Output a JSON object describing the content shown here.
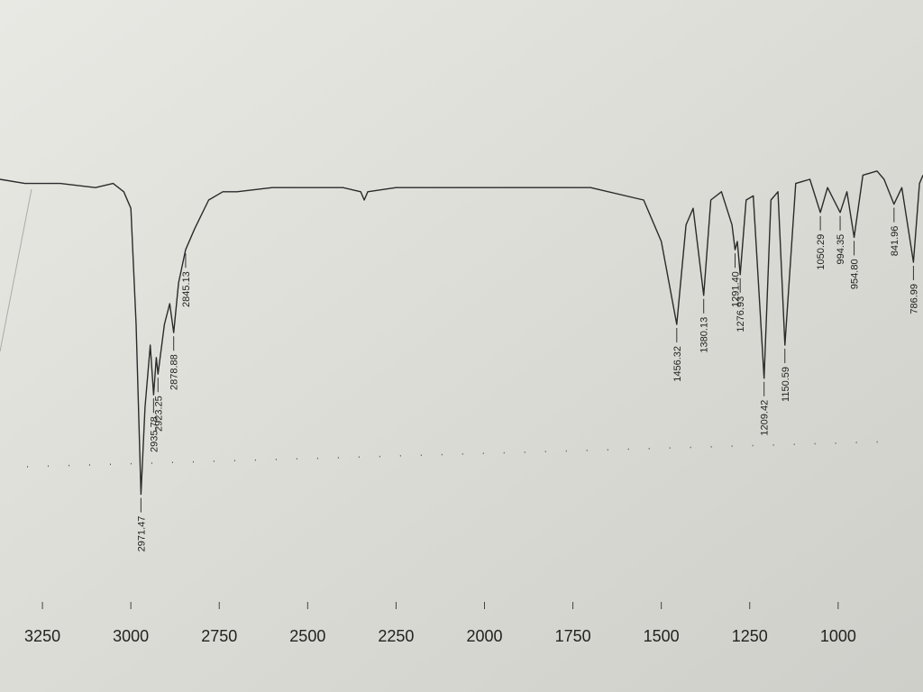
{
  "chart_data": {
    "type": "line",
    "color": "#2a2a2a",
    "x": [
      3370,
      3300,
      3200,
      3100,
      3050,
      3020,
      3000,
      2985,
      2971.47,
      2960,
      2945,
      2935.78,
      2928,
      2923.25,
      2905,
      2890,
      2878.88,
      2865,
      2845.13,
      2820,
      2780,
      2740,
      2700,
      2600,
      2500,
      2400,
      2350,
      2340,
      2330,
      2250,
      2000,
      1800,
      1700,
      1550,
      1500,
      1456.32,
      1430,
      1410,
      1380.13,
      1360,
      1330,
      1300,
      1291.4,
      1285,
      1276.93,
      1260,
      1240,
      1209.42,
      1190,
      1170,
      1150.59,
      1120,
      1080,
      1050.29,
      1030,
      994.35,
      975,
      954.8,
      930,
      890,
      870,
      841.96,
      820,
      786.99,
      770,
      760
    ],
    "values": [
      85,
      84,
      84,
      83,
      84,
      82,
      78,
      50,
      9,
      30,
      45,
      33,
      42,
      38,
      50,
      55,
      48,
      60,
      68,
      73,
      80,
      82,
      82,
      83,
      83,
      83,
      82,
      80,
      82,
      83,
      83,
      83,
      83,
      80,
      70,
      50,
      74,
      78,
      57,
      80,
      82,
      74,
      68,
      70,
      62,
      80,
      81,
      37,
      80,
      82,
      45,
      84,
      85,
      77,
      83,
      77,
      82,
      71,
      86,
      87,
      85,
      79,
      83,
      65,
      84,
      86
    ],
    "peaks": [
      2971.47,
      2935.78,
      2923.25,
      2878.88,
      2845.13,
      1456.32,
      1380.13,
      {
        "value": 1291.4,
        "label": "1291.40"
      },
      1276.93,
      1209.42,
      1150.59,
      1050.29,
      994.35,
      {
        "value": 954.8,
        "label": "954.80"
      },
      841.96,
      786.99
    ],
    "xlim": [
      3370,
      760
    ],
    "ylim": [
      0,
      100
    ],
    "xticks": [
      3250,
      3000,
      2750,
      2500,
      2250,
      2000,
      1750,
      1500,
      1250,
      1000
    ]
  }
}
